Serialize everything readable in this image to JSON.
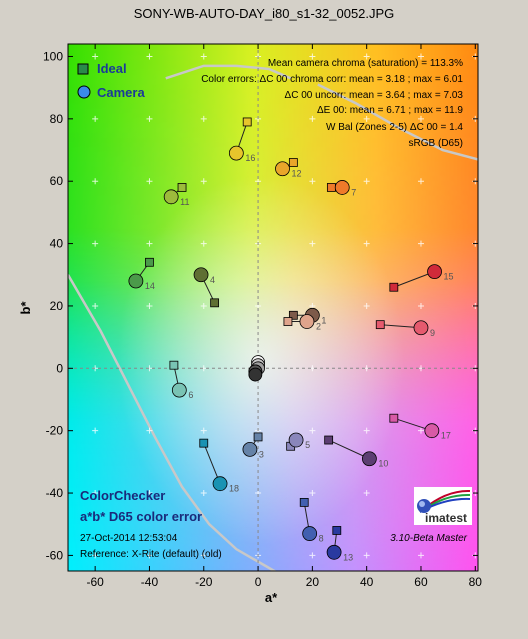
{
  "title": "SONY-WB-AUTO-DAY_i80_s1-32_0052.JPG",
  "legend": {
    "ideal": "Ideal",
    "camera": "Camera"
  },
  "info_lines": [
    "Mean camera chroma (saturation) = 113.3%",
    "Color errors: ΔC 00 chroma corr:  mean = 3.18 ;  max = 6.01",
    "ΔC 00 uncorr:  mean = 3.64 ;  max = 7.03",
    "ΔE 00:  mean = 6.71 ;  max = 11.9",
    "W Bal (Zones 2-5) ΔC 00 = 1.4",
    "sRGB (D65)"
  ],
  "bottom_left": {
    "heading": "ColorChecker",
    "subheading": "a*b* D65 color error",
    "timestamp": "27-Oct-2014 12:53:04",
    "reference": "Reference: X-Rite (default) (old)"
  },
  "version": "3.10-Beta  Master",
  "logo_text": "imatest",
  "colors": {
    "frame_bg": "#d4d0c8",
    "gamut_line": "#c8c8c8",
    "crosshair": "#888888",
    "link": "#222222"
  },
  "chart_data": {
    "type": "scatter",
    "xlabel": "a*",
    "ylabel": "b*",
    "xlim": [
      -70,
      81
    ],
    "ylim": [
      -65,
      104
    ],
    "xticks": [
      -60,
      -40,
      -20,
      0,
      20,
      40,
      60,
      80
    ],
    "yticks": [
      -60,
      -40,
      -20,
      0,
      20,
      40,
      60,
      80,
      100
    ],
    "grid": true,
    "legend_position": "top-left",
    "patches": [
      {
        "label": "1",
        "ideal": [
          13,
          17
        ],
        "camera": [
          20,
          17
        ],
        "color": "#7d5a4a"
      },
      {
        "label": "2",
        "ideal": [
          11,
          15
        ],
        "camera": [
          18,
          15
        ],
        "color": "#dfa48c"
      },
      {
        "label": "3",
        "ideal": [
          0,
          -22
        ],
        "camera": [
          -3,
          -26
        ],
        "color": "#6683a8"
      },
      {
        "label": "4",
        "ideal": [
          -16,
          21
        ],
        "camera": [
          -21,
          30
        ],
        "color": "#5f6f33"
      },
      {
        "label": "5",
        "ideal": [
          12,
          -25
        ],
        "camera": [
          14,
          -23
        ],
        "color": "#8a86bb"
      },
      {
        "label": "6",
        "ideal": [
          -31,
          1
        ],
        "camera": [
          -29,
          -7
        ],
        "color": "#79c3b4"
      },
      {
        "label": "7",
        "ideal": [
          27,
          58
        ],
        "camera": [
          31,
          58
        ],
        "color": "#ef7a2a"
      },
      {
        "label": "8",
        "ideal": [
          17,
          -43
        ],
        "camera": [
          19,
          -53
        ],
        "color": "#4160b0"
      },
      {
        "label": "9",
        "ideal": [
          45,
          14
        ],
        "camera": [
          60,
          13
        ],
        "color": "#e55a6e"
      },
      {
        "label": "10",
        "ideal": [
          26,
          -23
        ],
        "camera": [
          41,
          -29
        ],
        "color": "#5c3e72"
      },
      {
        "label": "11",
        "ideal": [
          -28,
          58
        ],
        "camera": [
          -32,
          55
        ],
        "color": "#9dbb3c"
      },
      {
        "label": "12",
        "ideal": [
          13,
          66
        ],
        "camera": [
          9,
          64
        ],
        "color": "#e9a62a"
      },
      {
        "label": "13",
        "ideal": [
          29,
          -52
        ],
        "camera": [
          28,
          -59
        ],
        "color": "#2a3aa0"
      },
      {
        "label": "14",
        "ideal": [
          -40,
          34
        ],
        "camera": [
          -45,
          28
        ],
        "color": "#4b9a4a"
      },
      {
        "label": "15",
        "ideal": [
          50,
          26
        ],
        "camera": [
          65,
          31
        ],
        "color": "#d02a3a"
      },
      {
        "label": "16",
        "ideal": [
          -4,
          79
        ],
        "camera": [
          -8,
          69
        ],
        "color": "#e7c52c"
      },
      {
        "label": "17",
        "ideal": [
          50,
          -16
        ],
        "camera": [
          64,
          -20
        ],
        "color": "#d85aa6"
      },
      {
        "label": "18",
        "ideal": [
          -20,
          -24
        ],
        "camera": [
          -14,
          -37
        ],
        "color": "#1a93b3"
      }
    ],
    "neutrals": [
      {
        "value": [
          0,
          2
        ],
        "color": "#fafafa"
      },
      {
        "value": [
          0,
          1
        ],
        "color": "#c9c9c9"
      },
      {
        "value": [
          0,
          0
        ],
        "color": "#a0a0a0"
      },
      {
        "value": [
          -1,
          -1
        ],
        "color": "#7a7a7a"
      },
      {
        "value": [
          -1,
          -1
        ],
        "color": "#555555"
      },
      {
        "value": [
          -1,
          -2
        ],
        "color": "#333333"
      }
    ]
  }
}
